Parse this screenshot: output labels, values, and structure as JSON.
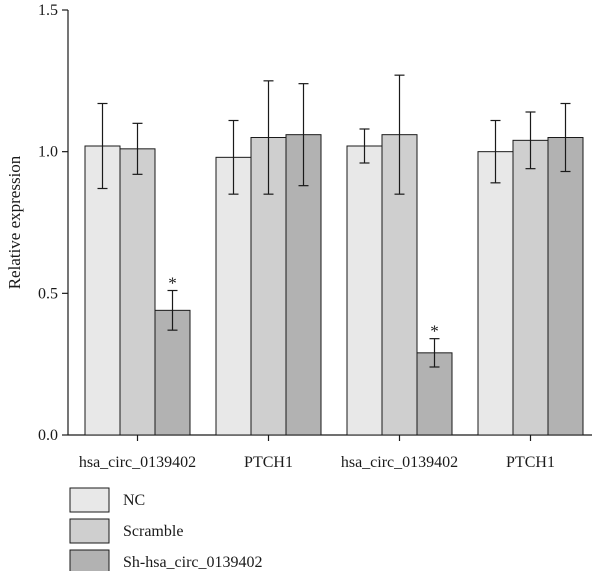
{
  "chart_data": {
    "type": "bar",
    "ylabel": "Relative expression",
    "ylim": [
      0,
      1.5
    ],
    "yticks": [
      "0.0",
      "0.5",
      "1.0",
      "1.5"
    ],
    "categories": [
      "hsa_circ_0139402",
      "PTCH1",
      "hsa_circ_0139402",
      "PTCH1"
    ],
    "series": [
      {
        "name": "NC",
        "color": "#e8e8e8",
        "values": [
          1.02,
          0.98,
          1.02,
          1.0
        ],
        "errors": [
          0.15,
          0.13,
          0.06,
          0.11
        ]
      },
      {
        "name": "Scramble",
        "color": "#cfcfcf",
        "values": [
          1.01,
          1.05,
          1.06,
          1.04
        ],
        "errors": [
          0.09,
          0.2,
          0.21,
          0.1
        ]
      },
      {
        "name": "Sh-hsa_circ_0139402",
        "color": "#b2b2b2",
        "values": [
          0.44,
          1.06,
          0.29,
          1.05
        ],
        "errors": [
          0.07,
          0.18,
          0.05,
          0.12
        ]
      }
    ],
    "significance": [
      {
        "category_index": 0,
        "series_index": 2,
        "label": "*"
      },
      {
        "category_index": 2,
        "series_index": 2,
        "label": "*"
      }
    ],
    "grid": false,
    "legend": "bottom-left"
  }
}
